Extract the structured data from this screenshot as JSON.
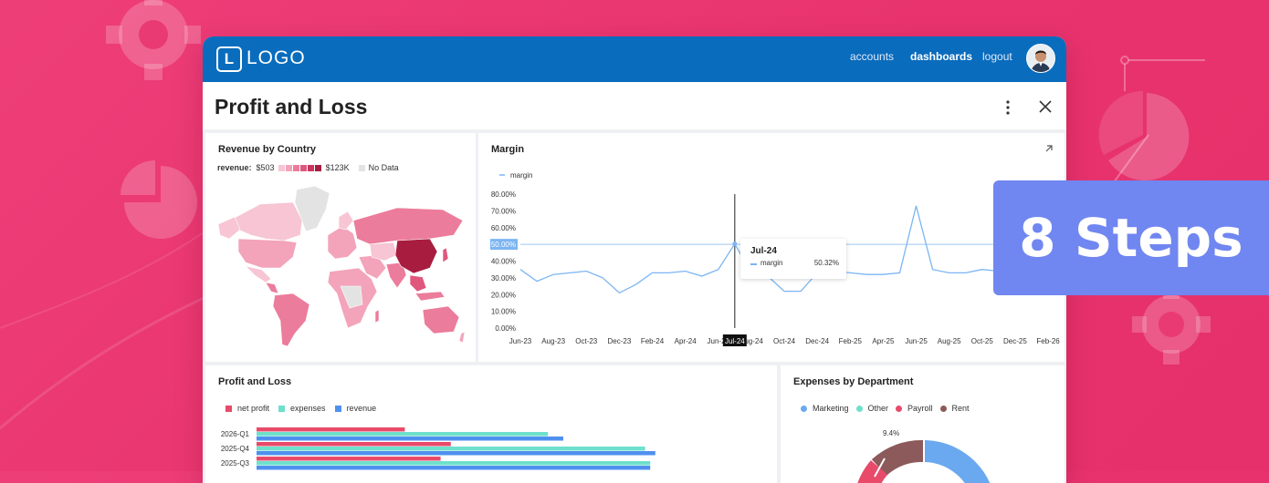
{
  "header": {
    "logo_mark": "L",
    "logo_text": "LOGO",
    "nav": [
      {
        "label": "accounts",
        "active": false
      },
      {
        "label": "dashboards",
        "active": true
      },
      {
        "label": "logout",
        "active": false
      }
    ]
  },
  "page": {
    "title": "Profit and Loss",
    "menu_icon": "kebab-menu-icon",
    "close_icon": "close-icon"
  },
  "revenue_map": {
    "title": "Revenue by Country",
    "legend_label": "revenue:",
    "min_label": "$503",
    "max_label": "$123K",
    "no_data_label": "No Data",
    "colors": [
      "#f7c5d3",
      "#f3a4ba",
      "#ec7c9b",
      "#e0577d",
      "#c9375e",
      "#a81d3f"
    ],
    "no_data_color": "#e3e3e3"
  },
  "margin_chart": {
    "title": "Margin",
    "expand_icon": "expand-arrow-icon",
    "legend": "margin",
    "y_ticks": [
      "80.00%",
      "70.00%",
      "60.00%",
      "50.00%",
      "40.00%",
      "30.00%",
      "20.00%",
      "10.00%",
      "0.00%"
    ],
    "x_ticks": [
      "Jun-23",
      "Aug-23",
      "Oct-23",
      "Dec-23",
      "Feb-24",
      "Apr-24",
      "Jun-24",
      "Aug-24",
      "Oct-24",
      "Dec-24",
      "Feb-25",
      "Apr-25",
      "Jun-25",
      "Aug-25",
      "Oct-25",
      "Dec-25",
      "Feb-26"
    ],
    "crosshair_y_label": "50.00%",
    "crosshair_x_label": "Jul-24",
    "tooltip": {
      "title": "Jul-24",
      "series": "margin",
      "value": "50.32%"
    }
  },
  "chart_data": [
    {
      "type": "line",
      "title": "Margin",
      "series": [
        {
          "name": "margin",
          "values": [
            35,
            28,
            32,
            33,
            34,
            30,
            21,
            26,
            33,
            33,
            34,
            31,
            35,
            50.32,
            33,
            31,
            22,
            22,
            33,
            34,
            33,
            32,
            32,
            33,
            73,
            35,
            33,
            33,
            35,
            34,
            32,
            33
          ]
        }
      ],
      "x": [
        "Jun-23",
        "Jul-23",
        "Aug-23",
        "Sep-23",
        "Oct-23",
        "Nov-23",
        "Dec-23",
        "Jan-24",
        "Feb-24",
        "Mar-24",
        "Apr-24",
        "May-24",
        "Jun-24",
        "Jul-24",
        "Aug-24",
        "Sep-24",
        "Oct-24",
        "Nov-24",
        "Dec-24",
        "Jan-25",
        "Feb-25",
        "Mar-25",
        "Apr-25",
        "May-25",
        "Jun-25",
        "Jul-25",
        "Aug-25",
        "Sep-25",
        "Oct-25",
        "Nov-25",
        "Dec-25",
        "Jan-26"
      ],
      "ylim": [
        0,
        80
      ],
      "unit": "%",
      "legend": "top-left"
    },
    {
      "type": "bar",
      "title": "Profit and Loss",
      "orientation": "horizontal",
      "categories": [
        "2026-Q1",
        "2025-Q4",
        "2025-Q3"
      ],
      "series": [
        {
          "name": "net profit",
          "color": "#e84a6a",
          "values": [
            29,
            38,
            36
          ]
        },
        {
          "name": "expenses",
          "color": "#6ee0cc",
          "values": [
            57,
            76,
            77
          ]
        },
        {
          "name": "revenue",
          "color": "#4f90ef",
          "values": [
            60,
            78,
            77
          ]
        }
      ]
    },
    {
      "type": "pie",
      "title": "Expenses by Department",
      "categories": [
        "Marketing",
        "Other",
        "Payroll",
        "Rent"
      ],
      "colors": [
        "#6aa9f0",
        "#6ee0cc",
        "#e84a6a",
        "#8c5a5a"
      ],
      "labels_visible": [
        "9.4%"
      ]
    }
  ],
  "pnl_chart": {
    "title": "Profit and Loss",
    "legend": [
      {
        "name": "net profit",
        "color": "#e84a6a"
      },
      {
        "name": "expenses",
        "color": "#6ee0cc"
      },
      {
        "name": "revenue",
        "color": "#4f90ef"
      }
    ]
  },
  "expenses_chart": {
    "title": "Expenses by Department",
    "legend": [
      {
        "name": "Marketing",
        "color": "#6aa9f0"
      },
      {
        "name": "Other",
        "color": "#6ee0cc"
      },
      {
        "name": "Payroll",
        "color": "#e84a6a"
      },
      {
        "name": "Rent",
        "color": "#8c5a5a"
      }
    ],
    "slice_label": "9.4%"
  },
  "promo": {
    "badge_text": "8 Steps"
  }
}
